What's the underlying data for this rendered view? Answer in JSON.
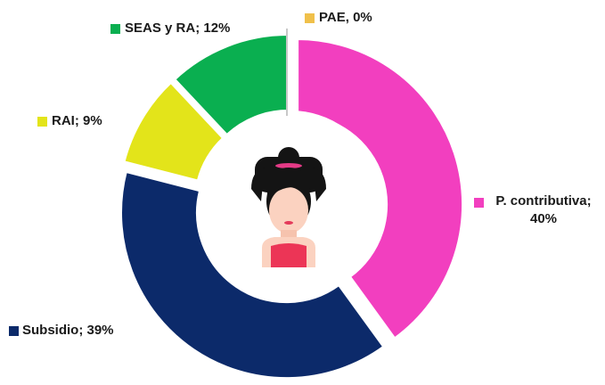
{
  "chart_data": {
    "type": "donut",
    "values": [
      40,
      39,
      9,
      12,
      0
    ],
    "value_labels": [
      "P. contributiva; 40%",
      "Subsidio; 39%",
      "RAI; 9%",
      "SEAS y RA; 12%",
      "PAE, 0%"
    ],
    "colors": [
      "#f23fbf",
      "#0c2a6a",
      "#e3e41a",
      "#0aaf50",
      "#f0c04a"
    ]
  }
}
